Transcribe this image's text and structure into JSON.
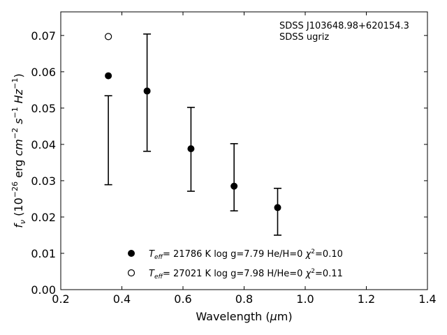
{
  "chart_data": {
    "type": "scatter",
    "title": "",
    "xlabel": "Wavelength (μm)",
    "ylabel": "f_ν (10⁻²⁶ erg cm⁻² s⁻¹ Hz⁻¹)",
    "xlim": [
      0.2,
      1.4
    ],
    "ylim": [
      0.0,
      0.0765
    ],
    "xticks": [
      0.2,
      0.4,
      0.6,
      0.8,
      1.0,
      1.2,
      1.4
    ],
    "xtick_labels": [
      "0.2",
      "0.4",
      "0.6",
      "0.8",
      "1.0",
      "1.2",
      "1.4"
    ],
    "yticks": [
      0.0,
      0.01,
      0.02,
      0.03,
      0.04,
      0.05,
      0.06,
      0.07
    ],
    "ytick_labels": [
      "0.00",
      "0.01",
      "0.02",
      "0.03",
      "0.04",
      "0.05",
      "0.06",
      "0.07"
    ],
    "grid": false,
    "annotations": [
      "SDSS J103648.98+620154.3",
      "SDSS ugriz"
    ],
    "observed": {
      "x": [
        0.3557,
        0.4825,
        0.6261,
        0.7672,
        0.9097
      ],
      "low": [
        0.0289,
        0.0381,
        0.0271,
        0.0217,
        0.015
      ],
      "high": [
        0.0534,
        0.0704,
        0.0502,
        0.0402,
        0.0279
      ]
    },
    "series": [
      {
        "name": "T_eff= 21786 K  log g=7.79  He/H=0  χ²=0.10",
        "marker": "filled-circle",
        "x": [
          0.3557,
          0.4825,
          0.6261,
          0.7672,
          0.9097
        ],
        "y": [
          0.0589,
          0.0547,
          0.0388,
          0.0285,
          0.0226
        ]
      },
      {
        "name": "T_eff= 27021 K  log g=7.98  H/He=0  χ²=0.11",
        "marker": "open-circle",
        "x": [
          0.3557
        ],
        "y": [
          0.0697
        ]
      }
    ],
    "legend": {
      "placement": "lower-center",
      "entries": [
        {
          "teff": "21786 K",
          "rest": "log g=7.79  He/H=0",
          "chi": "=0.10"
        },
        {
          "teff": "27021 K",
          "rest": "log g=7.98  H/He=0",
          "chi": "=0.11"
        }
      ]
    }
  }
}
